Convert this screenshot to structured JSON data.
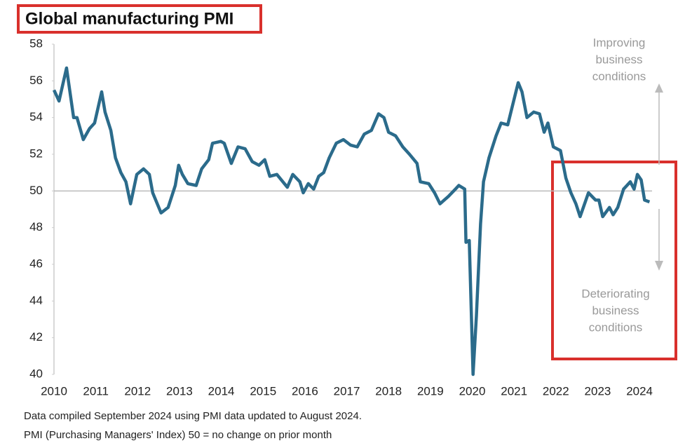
{
  "chart_data": {
    "type": "line",
    "title": "Global manufacturing PMI",
    "footnotes": [
      "Data compiled September 2024 using PMI data updated to August 2024.",
      "PMI (Purchasing Managers' Index) 50 = no change on prior month"
    ],
    "annotations": [
      {
        "lines": [
          "Improving",
          "business",
          "conditions"
        ]
      },
      {
        "lines": [
          "Deteriorating",
          "business",
          "conditions"
        ]
      }
    ],
    "reference_line": 50,
    "xlim": [
      2010,
      2024.3
    ],
    "xticks": [
      2010,
      2011,
      2012,
      2013,
      2014,
      2015,
      2016,
      2017,
      2018,
      2019,
      2020,
      2021,
      2022,
      2023,
      2024
    ],
    "ylim": [
      40,
      58
    ],
    "yticks": [
      40,
      42,
      44,
      46,
      48,
      50,
      52,
      54,
      56,
      58
    ],
    "series": [
      {
        "name": "Global manufacturing PMI",
        "color": "#2b6b8b",
        "x": [
          2010.0,
          2010.12,
          2010.3,
          2010.47,
          2010.55,
          2010.7,
          2010.85,
          2010.97,
          2011.14,
          2011.22,
          2011.36,
          2011.47,
          2011.6,
          2011.72,
          2011.83,
          2011.98,
          2012.14,
          2012.28,
          2012.36,
          2012.56,
          2012.73,
          2012.9,
          2012.98,
          2013.07,
          2013.2,
          2013.4,
          2013.53,
          2013.7,
          2013.79,
          2013.99,
          2014.07,
          2014.24,
          2014.4,
          2014.57,
          2014.74,
          2014.9,
          2015.04,
          2015.16,
          2015.33,
          2015.58,
          2015.71,
          2015.88,
          2015.96,
          2016.08,
          2016.21,
          2016.33,
          2016.45,
          2016.58,
          2016.75,
          2016.92,
          2017.09,
          2017.25,
          2017.42,
          2017.59,
          2017.76,
          2017.89,
          2018.0,
          2018.17,
          2018.34,
          2018.5,
          2018.68,
          2018.76,
          2018.96,
          2019.1,
          2019.23,
          2019.43,
          2019.6,
          2019.68,
          2019.82,
          2019.85,
          2019.93,
          2020.02,
          2020.1,
          2020.2,
          2020.27,
          2020.4,
          2020.57,
          2020.69,
          2020.85,
          2020.99,
          2021.1,
          2021.19,
          2021.31,
          2021.47,
          2021.61,
          2021.72,
          2021.81,
          2021.94,
          2022.11,
          2022.24,
          2022.36,
          2022.48,
          2022.58,
          2022.78,
          2022.95,
          2023.03,
          2023.12,
          2023.28,
          2023.37,
          2023.48,
          2023.62,
          2023.78,
          2023.87,
          2023.95,
          2024.04,
          2024.12,
          2024.24
        ],
        "values": [
          55.5,
          54.9,
          56.7,
          54.0,
          54.0,
          52.8,
          53.4,
          53.7,
          55.4,
          54.3,
          53.3,
          51.8,
          51.0,
          50.5,
          49.3,
          50.9,
          51.2,
          50.9,
          49.9,
          48.8,
          49.1,
          50.3,
          51.4,
          50.9,
          50.4,
          50.3,
          51.2,
          51.7,
          52.6,
          52.7,
          52.6,
          51.5,
          52.4,
          52.3,
          51.6,
          51.4,
          51.7,
          50.8,
          50.9,
          50.2,
          50.9,
          50.5,
          49.9,
          50.4,
          50.1,
          50.8,
          51.0,
          51.8,
          52.6,
          52.8,
          52.5,
          52.4,
          53.1,
          53.3,
          54.2,
          54.0,
          53.2,
          53.0,
          52.4,
          52.0,
          51.5,
          50.5,
          50.4,
          49.9,
          49.3,
          49.7,
          50.1,
          50.3,
          50.1,
          47.2,
          47.3,
          40.0,
          43.2,
          48.2,
          50.5,
          51.8,
          53.0,
          53.7,
          53.6,
          54.9,
          55.9,
          55.4,
          54.0,
          54.3,
          54.2,
          53.2,
          53.7,
          52.4,
          52.2,
          50.7,
          49.9,
          49.3,
          48.6,
          49.9,
          49.5,
          49.5,
          48.6,
          49.1,
          48.7,
          49.1,
          50.1,
          50.5,
          50.1,
          50.9,
          50.6,
          49.5,
          49.4
        ]
      }
    ]
  }
}
